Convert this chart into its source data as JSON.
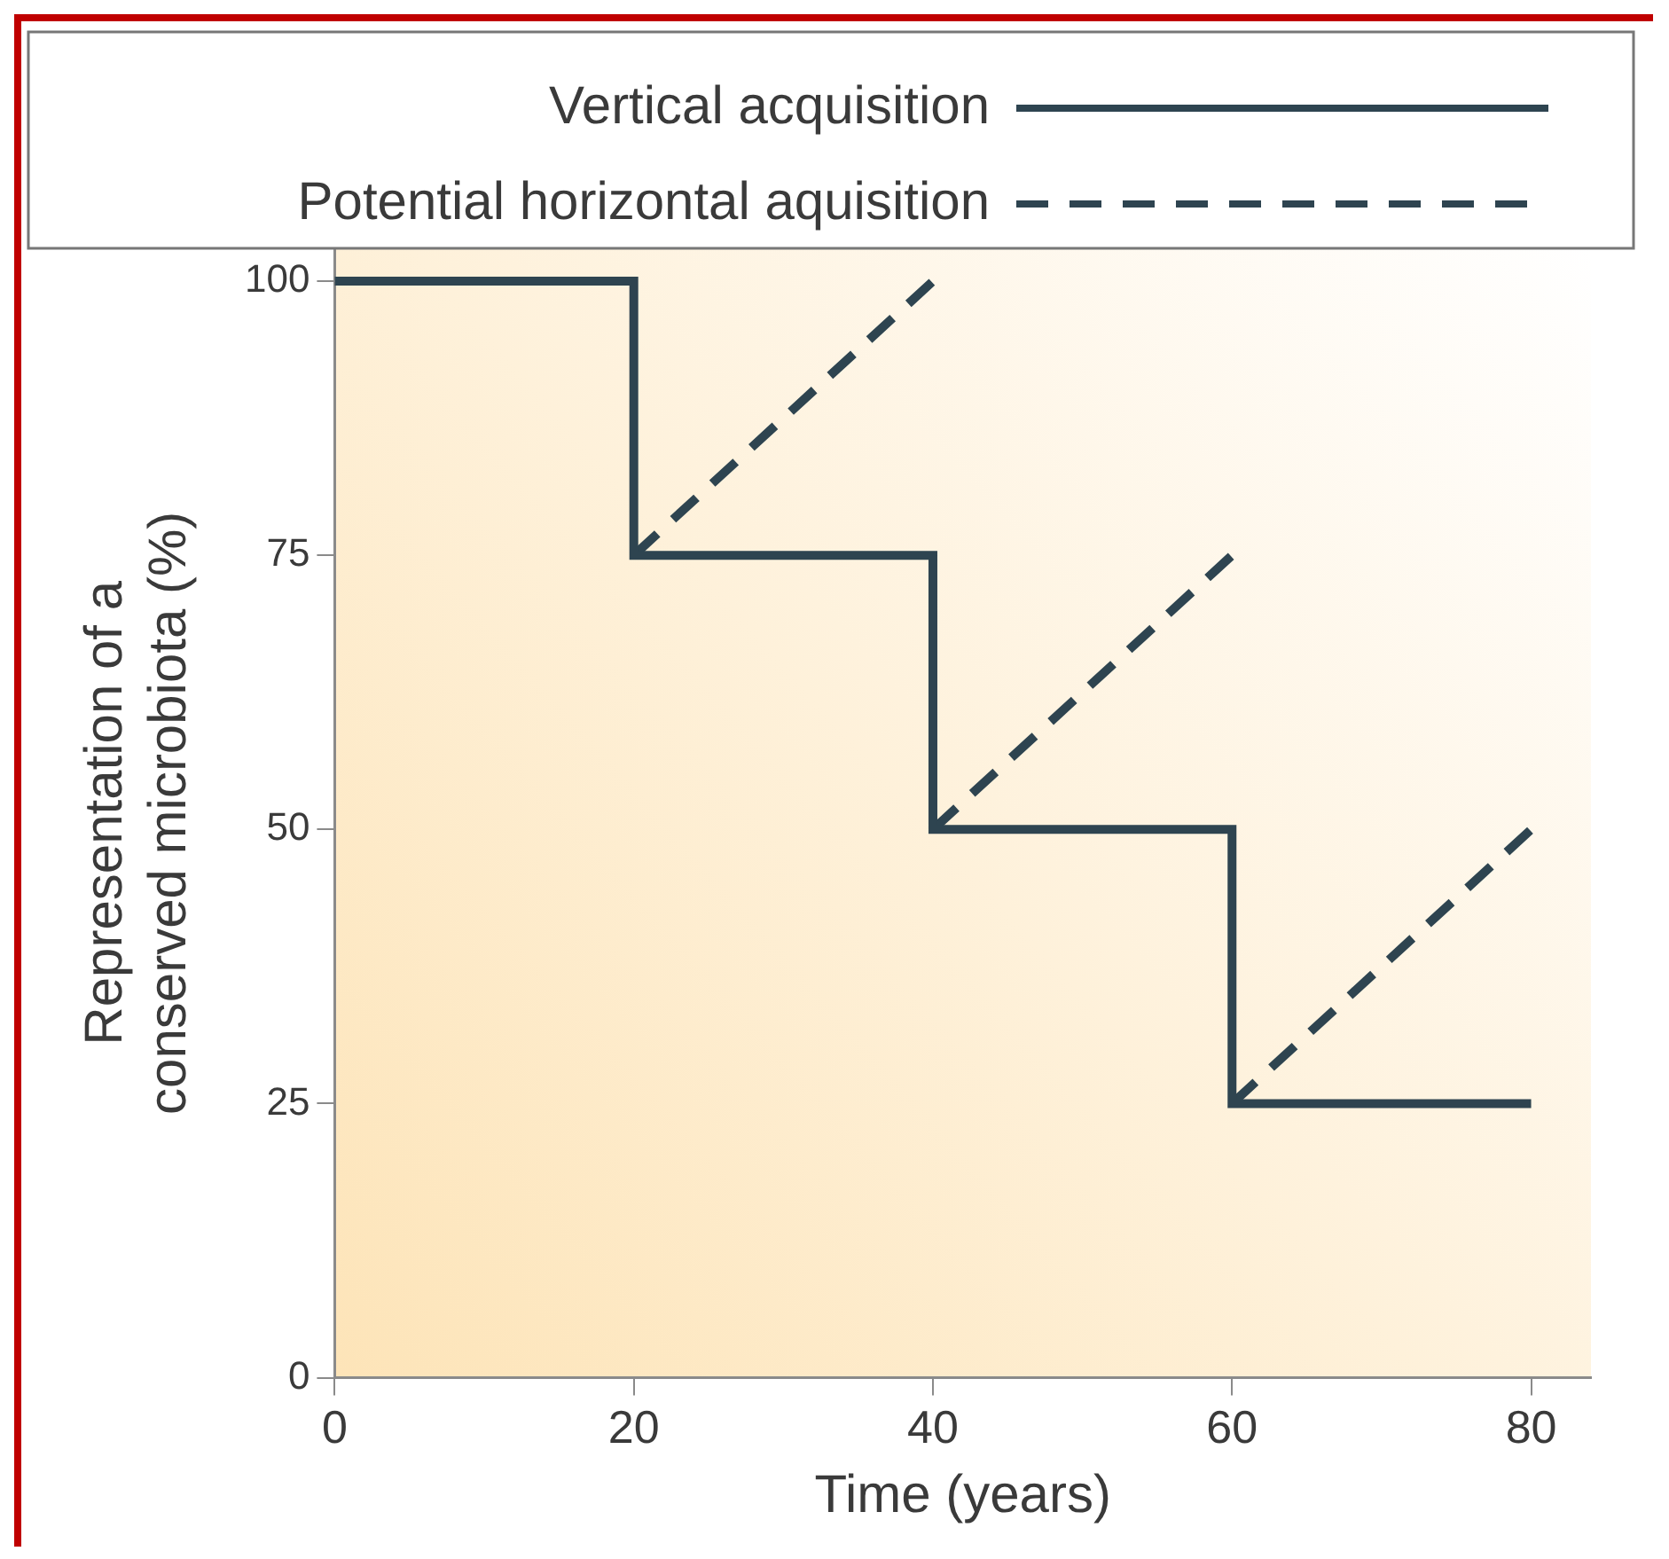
{
  "chart_data": {
    "type": "line",
    "xlabel": "Time (years)",
    "ylabel": "Representation of a\nconserved microbiota (%)",
    "xlim": [
      0,
      84
    ],
    "ylim": [
      0,
      103
    ],
    "xticks": [
      0,
      20,
      40,
      60,
      80
    ],
    "yticks": [
      0,
      25,
      50,
      75,
      100
    ],
    "grid": false,
    "legend": "top",
    "marker": "none",
    "series": [
      {
        "name": "Vertical acquisition",
        "type": "step",
        "color": "#2e4450",
        "line_style": "solid",
        "x": [
          0,
          20,
          40,
          60,
          80
        ],
        "values": [
          100,
          75,
          50,
          25,
          25
        ]
      },
      {
        "name": "Potential horizontal aquisition",
        "color": "#2e4450",
        "line_style": "dashed",
        "x": [
          20,
          40
        ],
        "values": [
          75,
          100
        ]
      },
      {
        "color": "#2e4450",
        "line_style": "dashed",
        "x": [
          40,
          60
        ],
        "values": [
          50,
          75
        ]
      },
      {
        "color": "#2e4450",
        "line_style": "dashed",
        "x": [
          60,
          80
        ],
        "values": [
          25,
          50
        ]
      }
    ]
  }
}
